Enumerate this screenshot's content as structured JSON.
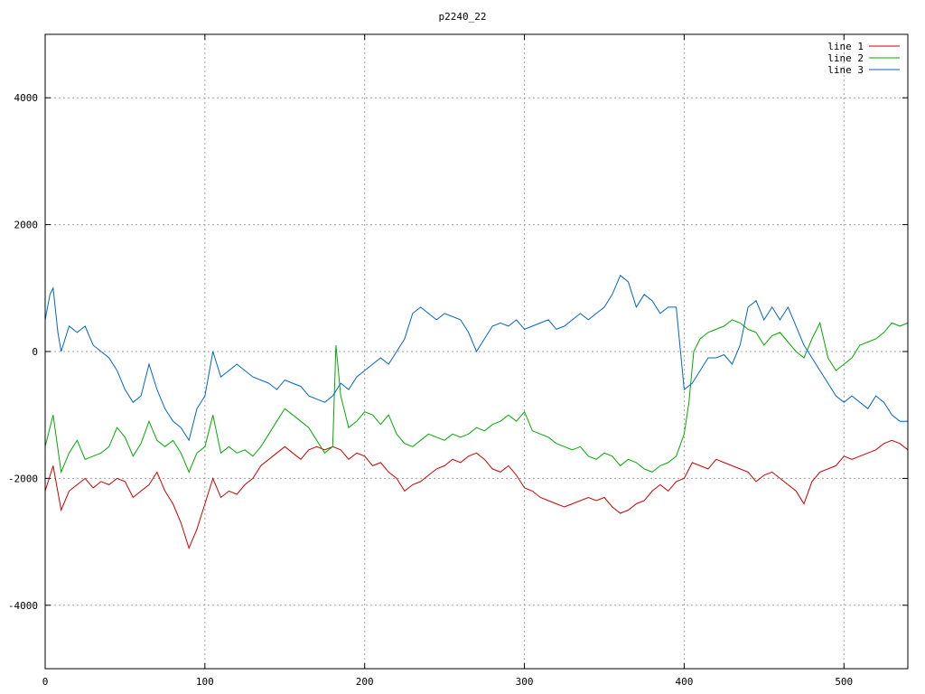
{
  "chart_data": {
    "type": "line",
    "title": "p2240_22",
    "xlabel": "",
    "ylabel": "",
    "xlim": [
      0,
      540
    ],
    "ylim": [
      -5000,
      5000
    ],
    "x_ticks": [
      0,
      100,
      200,
      300,
      400,
      500
    ],
    "y_ticks": [
      -4000,
      -2000,
      0,
      2000,
      4000
    ],
    "x_tick_labels": [
      "0",
      "100",
      "200",
      "300",
      "400",
      "500"
    ],
    "y_tick_labels": [
      "-4000",
      "-2000",
      "0",
      "2000",
      "4000"
    ],
    "grid": true,
    "legend": "top-right",
    "series": [
      {
        "name": "line 1",
        "color": "#cc0000",
        "x": [
          0,
          5,
          10,
          15,
          20,
          25,
          30,
          35,
          40,
          45,
          50,
          55,
          60,
          65,
          70,
          75,
          80,
          85,
          90,
          95,
          100,
          105,
          110,
          115,
          120,
          125,
          130,
          135,
          140,
          145,
          150,
          155,
          160,
          165,
          170,
          175,
          180,
          185,
          190,
          195,
          200,
          205,
          210,
          215,
          220,
          225,
          230,
          235,
          240,
          245,
          250,
          255,
          260,
          265,
          270,
          275,
          280,
          285,
          290,
          295,
          300,
          305,
          310,
          315,
          320,
          325,
          330,
          335,
          340,
          345,
          350,
          355,
          360,
          365,
          370,
          375,
          380,
          385,
          390,
          395,
          400,
          405,
          410,
          415,
          420,
          425,
          430,
          435,
          440,
          445,
          450,
          455,
          460,
          465,
          470,
          475,
          480,
          485,
          490,
          495,
          500,
          505,
          510,
          515,
          520,
          525,
          530,
          535,
          540
        ],
        "y": [
          -2200,
          -1800,
          -2500,
          -2200,
          -2100,
          -2000,
          -2150,
          -2050,
          -2100,
          -2000,
          -2050,
          -2300,
          -2200,
          -2100,
          -1900,
          -2200,
          -2400,
          -2700,
          -3100,
          -2800,
          -2400,
          -2000,
          -2300,
          -2200,
          -2250,
          -2100,
          -2000,
          -1800,
          -1700,
          -1600,
          -1500,
          -1600,
          -1700,
          -1550,
          -1500,
          -1550,
          -1500,
          -1550,
          -1700,
          -1600,
          -1650,
          -1800,
          -1750,
          -1900,
          -2000,
          -2200,
          -2100,
          -2050,
          -1950,
          -1850,
          -1800,
          -1700,
          -1750,
          -1650,
          -1600,
          -1700,
          -1850,
          -1900,
          -1800,
          -1950,
          -2150,
          -2200,
          -2300,
          -2350,
          -2400,
          -2450,
          -2400,
          -2350,
          -2300,
          -2350,
          -2300,
          -2450,
          -2550,
          -2500,
          -2400,
          -2350,
          -2200,
          -2100,
          -2200,
          -2050,
          -2000,
          -1750,
          -1800,
          -1850,
          -1700,
          -1750,
          -1800,
          -1850,
          -1900,
          -2050,
          -1950,
          -1900,
          -2000,
          -2100,
          -2200,
          -2400,
          -2050,
          -1900,
          -1850,
          -1800,
          -1650,
          -1700,
          -1650,
          -1600,
          -1550,
          -1450,
          -1400,
          -1450,
          -1550
        ]
      },
      {
        "name": "line 2",
        "color": "#00aa00",
        "x": [
          0,
          5,
          10,
          15,
          20,
          25,
          30,
          35,
          40,
          45,
          50,
          55,
          60,
          65,
          70,
          75,
          80,
          85,
          90,
          95,
          100,
          105,
          110,
          115,
          120,
          125,
          130,
          135,
          140,
          145,
          150,
          155,
          160,
          165,
          170,
          175,
          180,
          182,
          185,
          190,
          195,
          200,
          205,
          210,
          215,
          220,
          225,
          230,
          235,
          240,
          245,
          250,
          255,
          260,
          265,
          270,
          275,
          280,
          285,
          290,
          295,
          300,
          305,
          310,
          315,
          320,
          325,
          330,
          335,
          340,
          345,
          350,
          355,
          360,
          365,
          370,
          375,
          380,
          385,
          390,
          395,
          400,
          403,
          406,
          410,
          415,
          420,
          425,
          430,
          435,
          440,
          445,
          450,
          455,
          460,
          465,
          470,
          475,
          480,
          485,
          490,
          495,
          500,
          505,
          510,
          515,
          520,
          525,
          530,
          535,
          540
        ],
        "y": [
          -1500,
          -1000,
          -1900,
          -1600,
          -1400,
          -1700,
          -1650,
          -1600,
          -1500,
          -1200,
          -1350,
          -1650,
          -1450,
          -1100,
          -1400,
          -1500,
          -1400,
          -1600,
          -1900,
          -1600,
          -1500,
          -1000,
          -1600,
          -1500,
          -1600,
          -1550,
          -1650,
          -1500,
          -1300,
          -1100,
          -900,
          -1000,
          -1100,
          -1200,
          -1400,
          -1600,
          -1500,
          100,
          -700,
          -1200,
          -1100,
          -950,
          -1000,
          -1150,
          -1000,
          -1300,
          -1450,
          -1500,
          -1400,
          -1300,
          -1350,
          -1400,
          -1300,
          -1350,
          -1300,
          -1200,
          -1250,
          -1150,
          -1100,
          -1000,
          -1100,
          -950,
          -1250,
          -1300,
          -1350,
          -1450,
          -1500,
          -1550,
          -1500,
          -1650,
          -1700,
          -1600,
          -1650,
          -1800,
          -1700,
          -1750,
          -1850,
          -1900,
          -1800,
          -1750,
          -1650,
          -1300,
          -800,
          0,
          200,
          300,
          350,
          400,
          500,
          450,
          350,
          300,
          100,
          250,
          300,
          150,
          0,
          -100,
          200,
          450,
          -100,
          -300,
          -200,
          -100,
          100,
          150,
          200,
          300,
          450,
          400,
          450
        ]
      },
      {
        "name": "line 3",
        "color": "#0066cc",
        "x": [
          0,
          3,
          5,
          8,
          10,
          15,
          20,
          25,
          30,
          35,
          40,
          45,
          50,
          55,
          60,
          65,
          70,
          75,
          80,
          85,
          90,
          95,
          100,
          105,
          110,
          115,
          120,
          125,
          130,
          135,
          140,
          145,
          150,
          155,
          160,
          165,
          170,
          175,
          180,
          185,
          190,
          195,
          200,
          205,
          210,
          215,
          220,
          225,
          230,
          235,
          240,
          245,
          250,
          255,
          260,
          265,
          270,
          275,
          280,
          285,
          290,
          295,
          300,
          305,
          310,
          315,
          320,
          325,
          330,
          335,
          340,
          345,
          350,
          355,
          360,
          365,
          370,
          375,
          380,
          385,
          390,
          395,
          400,
          405,
          410,
          415,
          420,
          425,
          430,
          435,
          440,
          445,
          450,
          455,
          460,
          465,
          470,
          475,
          480,
          485,
          490,
          495,
          500,
          505,
          510,
          515,
          520,
          525,
          530,
          535,
          540
        ],
        "y": [
          500,
          900,
          1000,
          300,
          0,
          400,
          300,
          400,
          100,
          0,
          -100,
          -300,
          -600,
          -800,
          -700,
          -200,
          -600,
          -900,
          -1100,
          -1200,
          -1400,
          -900,
          -700,
          0,
          -400,
          -300,
          -200,
          -300,
          -400,
          -450,
          -500,
          -600,
          -450,
          -500,
          -550,
          -700,
          -750,
          -800,
          -700,
          -500,
          -600,
          -400,
          -300,
          -200,
          -100,
          -200,
          0,
          200,
          600,
          700,
          600,
          500,
          600,
          550,
          500,
          300,
          0,
          200,
          400,
          450,
          400,
          500,
          350,
          400,
          450,
          500,
          350,
          400,
          500,
          600,
          500,
          600,
          700,
          900,
          1200,
          1100,
          700,
          900,
          800,
          600,
          700,
          700,
          -600,
          -500,
          -300,
          -100,
          -100,
          -50,
          -200,
          100,
          700,
          800,
          500,
          700,
          500,
          700,
          400,
          100,
          -100,
          -300,
          -500,
          -700,
          -800,
          -700,
          -800,
          -900,
          -700,
          -800,
          -1000,
          -1100,
          -1100
        ]
      }
    ]
  }
}
